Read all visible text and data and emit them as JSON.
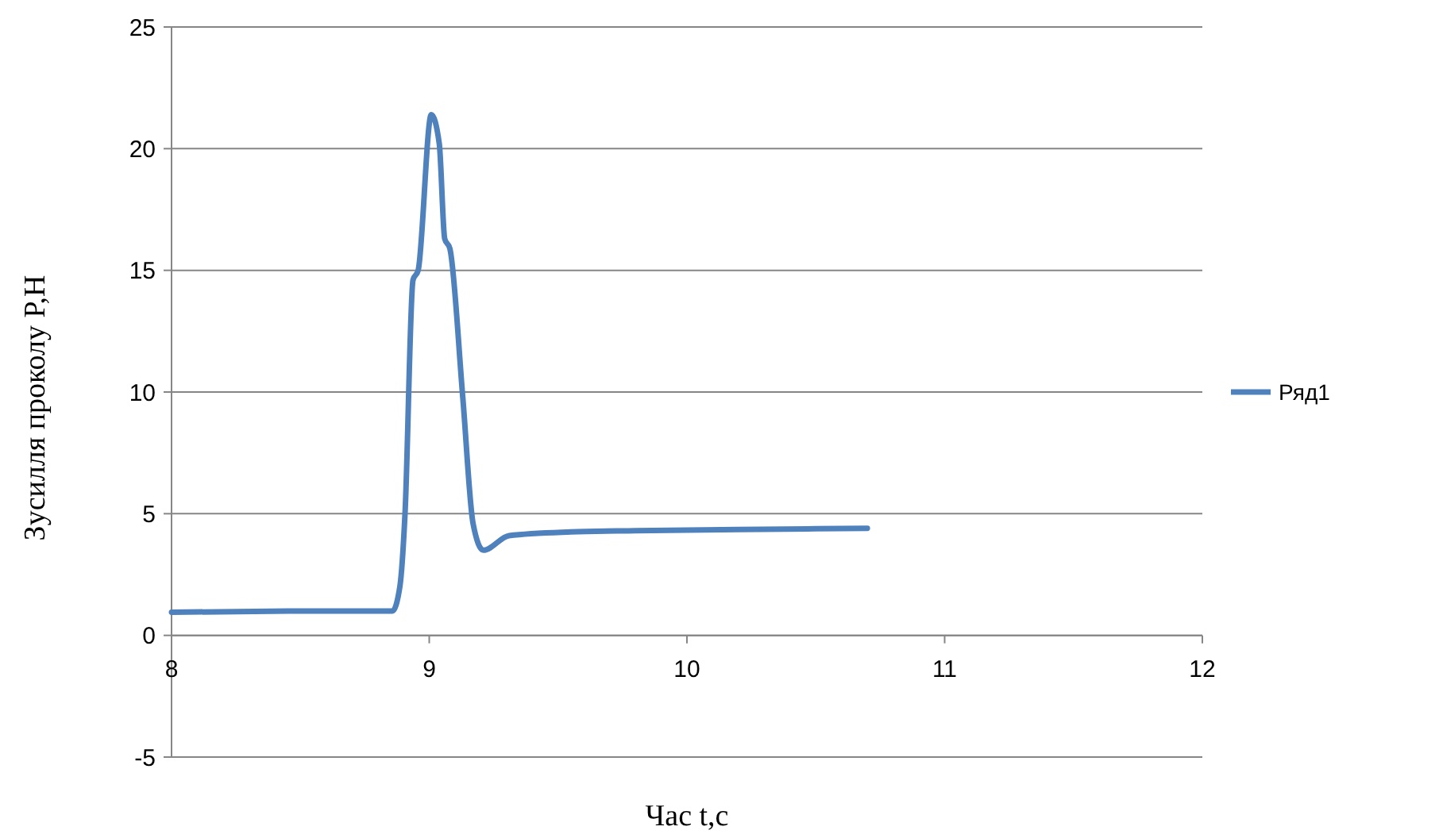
{
  "chart_data": {
    "type": "line",
    "xlabel": "Час t,c",
    "ylabel": "Зусилля проколу P,Н",
    "xlim": [
      8,
      12
    ],
    "xticks": [
      8,
      9,
      10,
      11,
      12
    ],
    "ylim": [
      -5,
      25
    ],
    "yticks": [
      -5,
      0,
      5,
      10,
      15,
      20,
      25
    ],
    "grid": "y",
    "legend": "right",
    "marker": "none",
    "line_style": "solid",
    "series": [
      {
        "name": "Ряд1",
        "color": "#4f81bd",
        "x": [
          8,
          8.5,
          8.857,
          8.886,
          8.906,
          8.937,
          8.957,
          9.008,
          9.039,
          9.06,
          9.08,
          9.13,
          9.17,
          9.21,
          9.31,
          9.55,
          9.8,
          10.2,
          10.7
        ],
        "values": [
          0.95,
          1,
          1,
          2,
          5,
          14.6,
          15,
          21.4,
          20.2,
          16.3,
          15.9,
          9.8,
          4.6,
          3.5,
          4.1,
          4.25,
          4.3,
          4.35,
          4.4
        ]
      }
    ]
  }
}
